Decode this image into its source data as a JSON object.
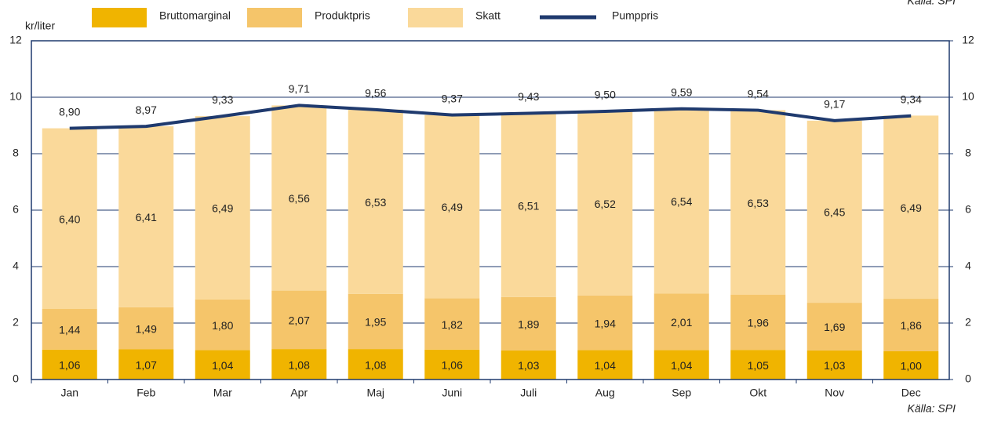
{
  "chart_data": {
    "type": "stacked_bar_line",
    "y_label": "kr/liter",
    "source": "Källa: SPI",
    "categories": [
      "Jan",
      "Feb",
      "Mar",
      "Apr",
      "Maj",
      "Juni",
      "Juli",
      "Aug",
      "Sep",
      "Okt",
      "Nov",
      "Dec"
    ],
    "series": [
      {
        "name": "Bruttomarginal",
        "color": "#f0b400",
        "kind": "bar",
        "values": [
          1.06,
          1.07,
          1.04,
          1.08,
          1.08,
          1.06,
          1.03,
          1.04,
          1.04,
          1.05,
          1.03,
          1.0
        ],
        "value_labels": [
          "1,06",
          "1,07",
          "1,04",
          "1,08",
          "1,08",
          "1,06",
          "1,03",
          "1,04",
          "1,04",
          "1,05",
          "1,03",
          "1,00"
        ]
      },
      {
        "name": "Produktpris",
        "color": "#f5c56a",
        "kind": "bar",
        "values": [
          1.44,
          1.49,
          1.8,
          2.07,
          1.95,
          1.82,
          1.89,
          1.94,
          2.01,
          1.96,
          1.69,
          1.86
        ],
        "value_labels": [
          "1,44",
          "1,49",
          "1,80",
          "2,07",
          "1,95",
          "1,82",
          "1,89",
          "1,94",
          "2,01",
          "1,96",
          "1,69",
          "1,86"
        ]
      },
      {
        "name": "Skatt",
        "color": "#fad99a",
        "kind": "bar",
        "values": [
          6.4,
          6.41,
          6.49,
          6.56,
          6.53,
          6.49,
          6.51,
          6.52,
          6.54,
          6.53,
          6.45,
          6.49
        ],
        "value_labels": [
          "6,40",
          "6,41",
          "6,49",
          "6,56",
          "6,53",
          "6,49",
          "6,51",
          "6,52",
          "6,54",
          "6,53",
          "6,45",
          "6,49"
        ]
      },
      {
        "name": "Pumppris",
        "color": "#1f3a6e",
        "kind": "line",
        "values": [
          8.9,
          8.97,
          9.33,
          9.71,
          9.56,
          9.37,
          9.43,
          9.5,
          9.59,
          9.54,
          9.17,
          9.34
        ],
        "value_labels": [
          "8,90",
          "8,97",
          "9,33",
          "9,71",
          "9,56",
          "9,37",
          "9,43",
          "9,50",
          "9,59",
          "9,54",
          "9,17",
          "9,34"
        ]
      }
    ],
    "ylim": [
      0,
      12
    ],
    "yticks": [
      0,
      2,
      4,
      6,
      8,
      10,
      12
    ],
    "y2lim": [
      0,
      12
    ],
    "y2ticks": [
      0,
      2,
      4,
      6,
      8,
      10,
      12
    ],
    "grid": true
  }
}
